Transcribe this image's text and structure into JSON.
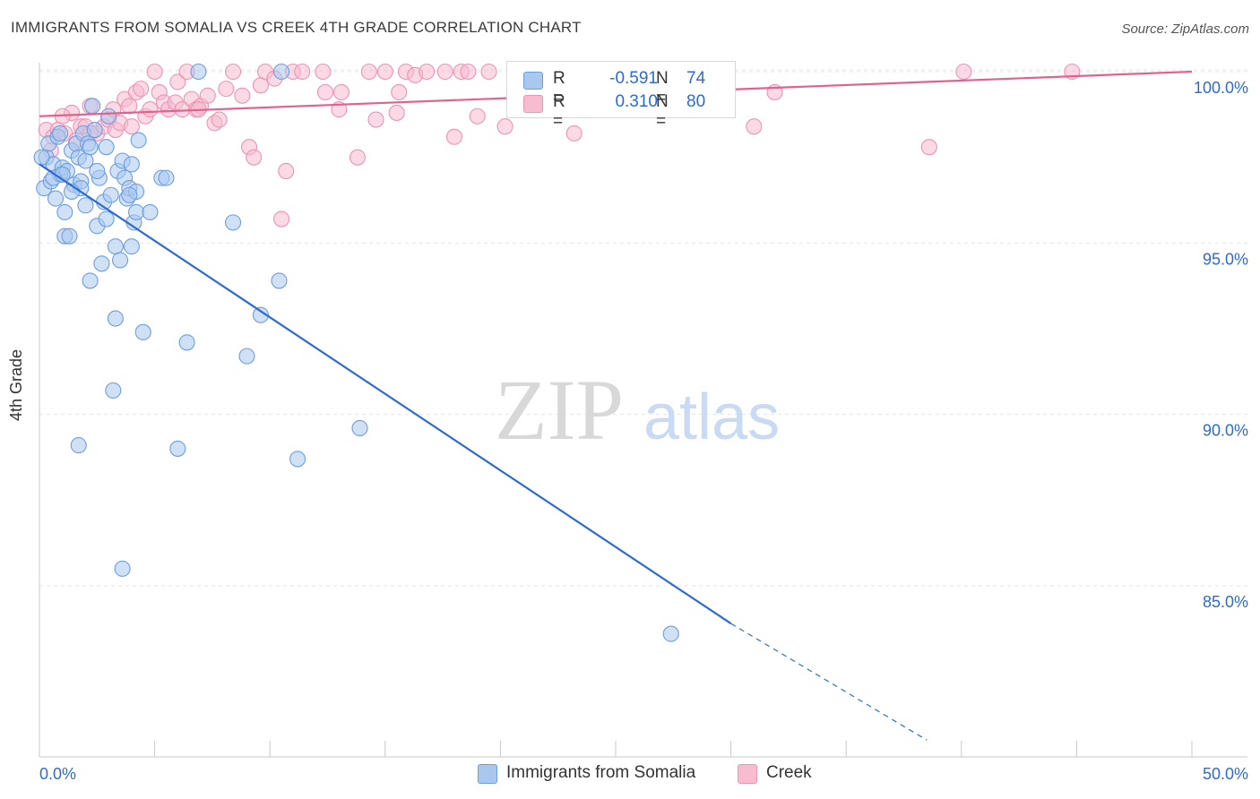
{
  "title": "IMMIGRANTS FROM SOMALIA VS CREEK 4TH GRADE CORRELATION CHART",
  "source": "Source: ZipAtlas.com",
  "watermark": {
    "zip": "ZIP",
    "atlas": "atlas"
  },
  "colors": {
    "blue_fill": "#aac8ee",
    "blue_stroke": "#6d9ee0",
    "blue_line": "#2d6bd1",
    "pink_fill": "#f7bcd0",
    "pink_stroke": "#ee93b3",
    "pink_line": "#e2628e",
    "value_text": "#2d6bd1",
    "grid": "#e4e4e4"
  },
  "legend": {
    "rows": [
      {
        "swatch": "blue",
        "r_label": "R =",
        "r_value": "-0.591",
        "n_label": "N =",
        "n_value": "74"
      },
      {
        "swatch": "pink",
        "r_label": "R =",
        "r_value": "0.310",
        "n_label": "N =",
        "n_value": "80"
      }
    ]
  },
  "bottom_legend": [
    {
      "swatch": "blue",
      "label": "Immigrants from Somalia"
    },
    {
      "swatch": "pink",
      "label": "Creek"
    }
  ],
  "chart_data": {
    "type": "scatter",
    "title": "IMMIGRANTS FROM SOMALIA VS CREEK 4TH GRADE CORRELATION CHART",
    "xlabel": "",
    "ylabel": "4th Grade",
    "xlim": [
      0,
      50
    ],
    "ylim": [
      80.5,
      100.8
    ],
    "x_tick_labels": [
      {
        "value": 0,
        "label": "0.0%"
      },
      {
        "value": 50,
        "label": "50.0%"
      }
    ],
    "x_minor_ticks": [
      0,
      5,
      10,
      15,
      20,
      25,
      30,
      35,
      40,
      45,
      50
    ],
    "y_ticks": [
      {
        "value": 100,
        "label": "100.0%"
      },
      {
        "value": 95,
        "label": "95.0%"
      },
      {
        "value": 90,
        "label": "90.0%"
      },
      {
        "value": 85,
        "label": "85.0%"
      }
    ],
    "series": [
      {
        "name": "Immigrants from Somalia",
        "color": "blue",
        "R": -0.591,
        "N": 74,
        "trend": {
          "x0": 0,
          "y0": 97.3,
          "x1": 30,
          "y1": 83.9,
          "dash_to_x": 38.5,
          "dash_to_y": 80.5
        },
        "points": [
          [
            0.2,
            96.6
          ],
          [
            0.3,
            97.5
          ],
          [
            0.4,
            97.9
          ],
          [
            0.5,
            96.8
          ],
          [
            0.6,
            97.3
          ],
          [
            0.7,
            96.3
          ],
          [
            0.8,
            98.1
          ],
          [
            0.9,
            97.0
          ],
          [
            1.0,
            97.2
          ],
          [
            1.1,
            95.9
          ],
          [
            1.1,
            95.2
          ],
          [
            1.2,
            97.1
          ],
          [
            1.3,
            95.2
          ],
          [
            1.4,
            97.7
          ],
          [
            1.5,
            96.7
          ],
          [
            1.6,
            97.9
          ],
          [
            1.7,
            97.5
          ],
          [
            1.8,
            96.8
          ],
          [
            1.8,
            96.6
          ],
          [
            1.9,
            98.2
          ],
          [
            2.0,
            96.1
          ],
          [
            2.0,
            97.4
          ],
          [
            2.1,
            97.9
          ],
          [
            2.2,
            93.9
          ],
          [
            2.2,
            97.8
          ],
          [
            2.3,
            99.0
          ],
          [
            2.4,
            98.3
          ],
          [
            2.5,
            95.5
          ],
          [
            2.6,
            96.9
          ],
          [
            2.7,
            94.4
          ],
          [
            2.8,
            96.2
          ],
          [
            2.9,
            97.8
          ],
          [
            2.9,
            95.7
          ],
          [
            3.0,
            98.7
          ],
          [
            3.1,
            96.4
          ],
          [
            3.2,
            90.7
          ],
          [
            3.3,
            92.8
          ],
          [
            3.3,
            94.9
          ],
          [
            3.4,
            97.1
          ],
          [
            3.5,
            94.5
          ],
          [
            3.6,
            85.5
          ],
          [
            3.6,
            97.4
          ],
          [
            3.7,
            96.9
          ],
          [
            3.8,
            96.3
          ],
          [
            3.9,
            96.6
          ],
          [
            4.0,
            94.9
          ],
          [
            4.0,
            97.3
          ],
          [
            4.1,
            95.6
          ],
          [
            4.2,
            96.5
          ],
          [
            4.2,
            95.9
          ],
          [
            4.3,
            98.0
          ],
          [
            4.5,
            92.4
          ],
          [
            4.8,
            95.9
          ],
          [
            5.3,
            96.9
          ],
          [
            5.5,
            96.9
          ],
          [
            6.0,
            89.0
          ],
          [
            6.4,
            92.1
          ],
          [
            6.9,
            100.0
          ],
          [
            8.4,
            95.6
          ],
          [
            9.0,
            91.7
          ],
          [
            9.6,
            92.9
          ],
          [
            10.4,
            93.9
          ],
          [
            10.5,
            100.0
          ],
          [
            11.2,
            88.7
          ],
          [
            13.9,
            89.6
          ],
          [
            1.7,
            89.1
          ],
          [
            27.4,
            83.6
          ],
          [
            0.1,
            97.5
          ],
          [
            0.6,
            96.9
          ],
          [
            2.5,
            97.1
          ],
          [
            1.4,
            96.5
          ],
          [
            3.9,
            96.4
          ],
          [
            1.0,
            97.0
          ],
          [
            0.9,
            98.2
          ]
        ]
      },
      {
        "name": "Creek",
        "color": "pink",
        "R": 0.31,
        "N": 80,
        "trend": {
          "x0": 0,
          "y0": 98.7,
          "x1": 50,
          "y1": 100.0
        },
        "points": [
          [
            0.3,
            98.3
          ],
          [
            0.5,
            97.7
          ],
          [
            0.6,
            98.1
          ],
          [
            0.8,
            98.3
          ],
          [
            1.1,
            98.2
          ],
          [
            1.4,
            98.8
          ],
          [
            1.6,
            98.0
          ],
          [
            1.8,
            98.4
          ],
          [
            2.0,
            98.4
          ],
          [
            2.2,
            99.0
          ],
          [
            2.5,
            98.2
          ],
          [
            2.8,
            98.4
          ],
          [
            3.0,
            98.6
          ],
          [
            3.2,
            98.9
          ],
          [
            3.3,
            98.3
          ],
          [
            3.5,
            98.5
          ],
          [
            3.7,
            99.2
          ],
          [
            3.9,
            99.0
          ],
          [
            4.0,
            98.4
          ],
          [
            4.2,
            99.4
          ],
          [
            4.4,
            99.5
          ],
          [
            4.6,
            98.7
          ],
          [
            4.8,
            98.9
          ],
          [
            5.0,
            100.0
          ],
          [
            5.2,
            99.4
          ],
          [
            5.4,
            99.1
          ],
          [
            5.6,
            98.9
          ],
          [
            5.9,
            99.1
          ],
          [
            6.0,
            99.7
          ],
          [
            6.2,
            98.9
          ],
          [
            6.4,
            100.0
          ],
          [
            6.6,
            99.2
          ],
          [
            6.8,
            98.9
          ],
          [
            7.0,
            99.0
          ],
          [
            7.3,
            99.3
          ],
          [
            7.6,
            98.5
          ],
          [
            7.8,
            98.6
          ],
          [
            8.1,
            99.5
          ],
          [
            8.4,
            100.0
          ],
          [
            8.8,
            99.3
          ],
          [
            9.1,
            97.8
          ],
          [
            9.3,
            97.5
          ],
          [
            9.6,
            99.6
          ],
          [
            9.8,
            100.0
          ],
          [
            10.2,
            99.8
          ],
          [
            10.5,
            95.7
          ],
          [
            10.7,
            97.1
          ],
          [
            11.0,
            100.0
          ],
          [
            11.4,
            100.0
          ],
          [
            12.4,
            99.4
          ],
          [
            13.0,
            98.9
          ],
          [
            13.1,
            99.4
          ],
          [
            13.8,
            97.5
          ],
          [
            14.3,
            100.0
          ],
          [
            14.6,
            98.6
          ],
          [
            15.0,
            100.0
          ],
          [
            15.5,
            98.8
          ],
          [
            15.6,
            99.4
          ],
          [
            15.9,
            100.0
          ],
          [
            16.3,
            99.9
          ],
          [
            16.8,
            100.0
          ],
          [
            17.6,
            100.0
          ],
          [
            18.0,
            98.1
          ],
          [
            18.3,
            100.0
          ],
          [
            18.6,
            100.0
          ],
          [
            19.0,
            98.7
          ],
          [
            19.5,
            100.0
          ],
          [
            20.2,
            98.4
          ],
          [
            21.6,
            100.0
          ],
          [
            23.2,
            98.2
          ],
          [
            25.0,
            100.0
          ],
          [
            31.0,
            98.4
          ],
          [
            31.9,
            99.4
          ],
          [
            38.6,
            97.8
          ],
          [
            40.1,
            100.0
          ],
          [
            44.8,
            100.0
          ],
          [
            12.3,
            100.0
          ],
          [
            6.9,
            98.9
          ],
          [
            2.2,
            98.2
          ],
          [
            1.0,
            98.7
          ]
        ]
      }
    ]
  }
}
